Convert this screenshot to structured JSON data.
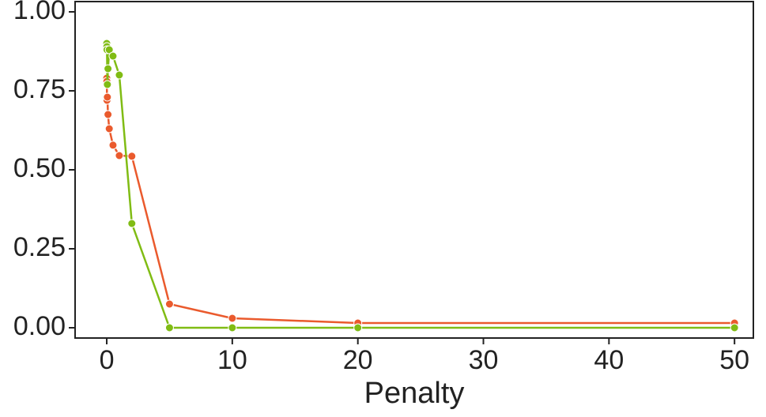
{
  "chart_data": {
    "type": "line",
    "x_label": "Penalty",
    "x": [
      0,
      0.01,
      0.02,
      0.05,
      0.1,
      0.2,
      0.5,
      1,
      2,
      5,
      10,
      20,
      50
    ],
    "series": [
      {
        "color": "#ea5a2d",
        "values": [
          0.79,
          0.78,
          0.72,
          0.73,
          0.675,
          0.63,
          0.578,
          0.545,
          0.543,
          0.075,
          0.03,
          0.015,
          0.015
        ]
      },
      {
        "color": "#80bc14",
        "values": [
          0.9,
          0.89,
          0.88,
          0.77,
          0.82,
          0.88,
          0.86,
          0.8,
          0.33,
          0,
          0,
          0,
          0
        ]
      }
    ],
    "xlim": [
      -2.52,
      51.5
    ],
    "ylim": [
      -0.0325,
      1.0325
    ],
    "xticks": [
      0,
      10,
      20,
      30,
      40,
      50
    ],
    "yticks": [
      {
        "value": 0,
        "label": "0.00"
      },
      {
        "value": 0.25,
        "label": "0.25"
      },
      {
        "value": 0.5,
        "label": "0.50"
      },
      {
        "value": 0.75,
        "label": "0.75"
      },
      {
        "value": 1,
        "label": "1.00"
      }
    ]
  }
}
